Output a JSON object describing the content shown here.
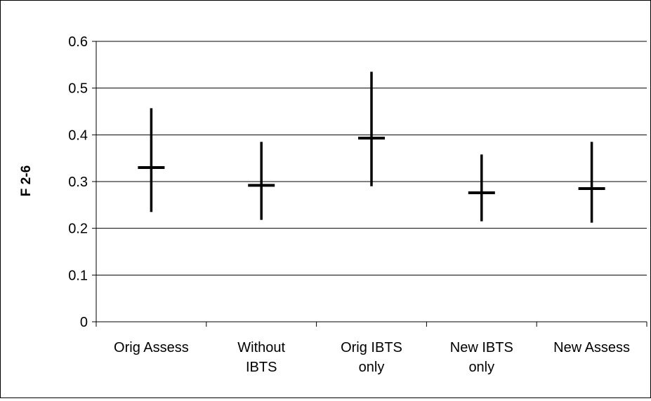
{
  "chart_data": {
    "type": "scatter",
    "title": "",
    "xlabel": "",
    "ylabel": "F 2-6",
    "ylim": [
      0,
      0.6
    ],
    "yticks": [
      0,
      0.1,
      0.2,
      0.3,
      0.4,
      0.5,
      0.6
    ],
    "ytick_labels": [
      "0",
      "0.1",
      "0.2",
      "0.3",
      "0.4",
      "0.5",
      "0.6"
    ],
    "grid": true,
    "legend": "none",
    "categories": [
      [
        "Orig Assess"
      ],
      [
        "Without",
        "IBTS"
      ],
      [
        "Orig IBTS",
        "only"
      ],
      [
        "New IBTS",
        "only"
      ],
      [
        "New Assess"
      ]
    ],
    "series": [
      {
        "estimate": [
          0.33,
          0.292,
          0.393,
          0.276,
          0.285
        ],
        "lower": [
          0.235,
          0.218,
          0.29,
          0.215,
          0.212
        ],
        "upper": [
          0.457,
          0.385,
          0.535,
          0.358,
          0.385
        ]
      }
    ],
    "colors": {
      "marks": "#000000",
      "grid": "#000000",
      "frame": "#000000"
    }
  }
}
